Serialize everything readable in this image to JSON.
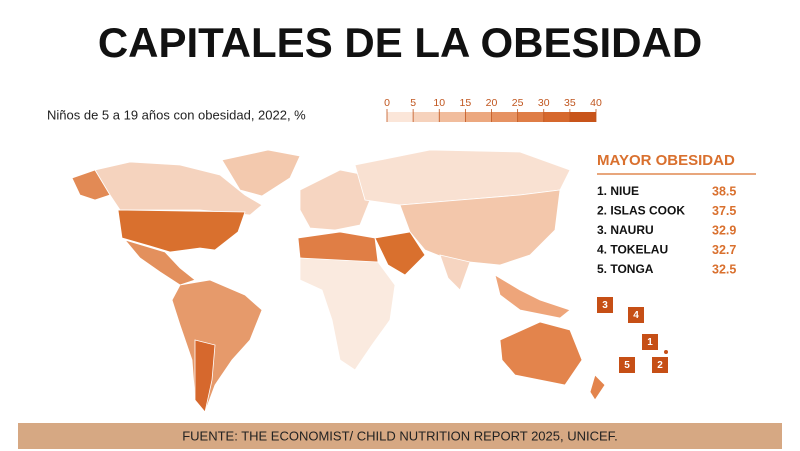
{
  "title": "CAPITALES DE LA OBESIDAD",
  "subtitle": "Niños de 5 a 19 años con obesidad, 2022, %",
  "scale": {
    "ticks": [
      0,
      5,
      10,
      15,
      20,
      25,
      30,
      35,
      40
    ],
    "colors": [
      "#fbe6d9",
      "#f6d2bc",
      "#f1bd9d",
      "#eca87f",
      "#e69262",
      "#df7d46",
      "#d6682d",
      "#c8541a"
    ]
  },
  "ranking": {
    "title": "MAYOR OBESIDAD",
    "rows": [
      {
        "label": "1. NIUE",
        "value": 38.5
      },
      {
        "label": "2. ISLAS COOK",
        "value": 37.5
      },
      {
        "label": "3. NAURU",
        "value": 32.9
      },
      {
        "label": "4. TOKELAU",
        "value": 32.7
      },
      {
        "label": "5. TONGA",
        "value": 32.5
      }
    ]
  },
  "map_markers": [
    "3",
    "4",
    "1",
    "5",
    "2"
  ],
  "source": "FUENTE: THE ECONOMIST/ CHILD NUTRITION REPORT 2025, UNICEF."
}
